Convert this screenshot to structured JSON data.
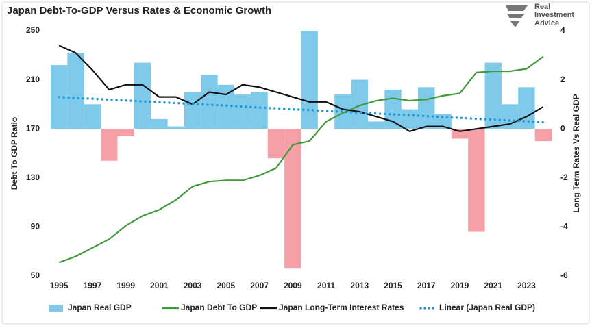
{
  "chart_data": {
    "type": "combo",
    "title": "Japan Debt-To-GDP Versus Rates & Economic Growth",
    "logo": [
      "Real",
      "Investment",
      "Advice"
    ],
    "y_label": "Debt To GDP Ratio",
    "y2_label": "Long Term Rates Vs Real GDP",
    "x": [
      1995,
      1996,
      1997,
      1998,
      1999,
      2000,
      2001,
      2002,
      2003,
      2004,
      2005,
      2006,
      2007,
      2008,
      2009,
      2010,
      2011,
      2012,
      2013,
      2014,
      2015,
      2016,
      2017,
      2018,
      2019,
      2020,
      2021,
      2022,
      2023,
      2024
    ],
    "xlim": [
      1994.5,
      2024.5
    ],
    "xticks": [
      1995,
      1997,
      1999,
      2001,
      2003,
      2005,
      2007,
      2009,
      2011,
      2013,
      2015,
      2017,
      2019,
      2021,
      2023
    ],
    "ylim": [
      50,
      250
    ],
    "yticks": [
      50,
      90,
      130,
      170,
      210,
      250
    ],
    "y2lim": [
      -6,
      4
    ],
    "y2ticks": [
      -6,
      -4,
      -2,
      0,
      2,
      4
    ],
    "legend": "bottom",
    "series": [
      {
        "name": "Japan Real GDP",
        "type": "bar",
        "axis": "y2",
        "color": "#7fcaea",
        "negative_color": "#f4a0a6",
        "values": [
          2.6,
          3.1,
          1.0,
          -1.3,
          -0.3,
          2.7,
          0.4,
          0.1,
          1.5,
          2.2,
          1.8,
          1.4,
          1.5,
          -1.2,
          -5.7,
          4.1,
          0.0,
          1.4,
          2.0,
          0.3,
          1.6,
          0.8,
          1.7,
          0.6,
          -0.4,
          -4.2,
          2.7,
          1.0,
          1.7,
          -0.5
        ]
      },
      {
        "name": "Japan Debt To GDP",
        "type": "line",
        "color": "#3f9a3a",
        "values": [
          61,
          66,
          73,
          80,
          91,
          99,
          104,
          112,
          123,
          127,
          128,
          128,
          132,
          138,
          157,
          160,
          176,
          183,
          189,
          193,
          195,
          193,
          194,
          197,
          199,
          216,
          217,
          217,
          219,
          229
        ]
      },
      {
        "name": "Japan Long-Term Interest Rates",
        "type": "line",
        "axis": "y2",
        "color": "#111111",
        "values": [
          3.4,
          3.1,
          2.4,
          1.6,
          1.8,
          1.8,
          1.3,
          1.3,
          1.0,
          1.5,
          1.4,
          1.8,
          1.7,
          1.5,
          1.3,
          1.1,
          1.1,
          0.8,
          0.7,
          0.5,
          0.3,
          -0.1,
          0.1,
          0.1,
          -0.1,
          0.0,
          0.1,
          0.2,
          0.5,
          0.9
        ]
      },
      {
        "name": "Linear (Japan Real GDP)",
        "type": "line",
        "style": "dotted",
        "axis": "y2",
        "color": "#1f9ad6",
        "values": [
          1.3,
          1.26,
          1.23,
          1.19,
          1.16,
          1.12,
          1.09,
          1.05,
          1.02,
          0.98,
          0.95,
          0.91,
          0.87,
          0.84,
          0.8,
          0.77,
          0.73,
          0.7,
          0.66,
          0.63,
          0.59,
          0.56,
          0.52,
          0.48,
          0.45,
          0.41,
          0.38,
          0.34,
          0.31,
          0.27
        ]
      }
    ]
  }
}
